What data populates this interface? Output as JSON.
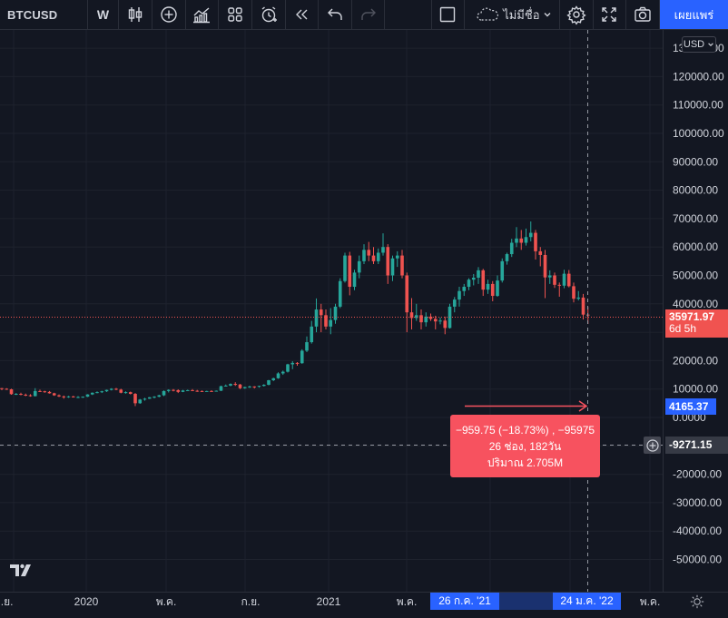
{
  "toolbar": {
    "symbol": "BTCUSD",
    "interval": "W",
    "icons": [
      "candles-icon",
      "add-indicator-icon",
      "indicators-icon",
      "templates-icon",
      "alert-icon",
      "replay-icon",
      "undo-icon",
      "redo-icon",
      "fullscreen-square-icon"
    ],
    "layout_name": "ไม่มีชื่อ",
    "publish_label": "เผยแพร่"
  },
  "currency": "USD",
  "price_axis": {
    "top_partial_label": "130000.00",
    "labels": [
      "120000.00",
      "110000.00",
      "100000.00",
      "90000.00",
      "80000.00",
      "70000.00",
      "60000.00",
      "50000.00",
      "40000.00",
      "20000.00",
      "10000.00",
      "0.0000",
      "-20000.00",
      "-30000.00",
      "-40000.00",
      "-50000.00"
    ]
  },
  "time_axis": {
    "labels": [
      "ก.ย.",
      "2020",
      "พ.ค.",
      "ก.ย.",
      "2021",
      "พ.ค.",
      "พ.ค."
    ]
  },
  "last_price": {
    "value": "35971.97",
    "countdown": "6d 5h"
  },
  "crosshair_price": "4165.37",
  "cursor_price": "-9271.15",
  "measure": {
    "line1": "−959.75 (−18.73%) , −95975",
    "line2": "26 ช่อง, 182วัน",
    "line3": "ปริมาณ 2.705M"
  },
  "time_range": {
    "start": "26 ก.ค. '21",
    "end": "24 ม.ค. '22"
  },
  "colors": {
    "up": "#26a69a",
    "down": "#ef5350",
    "accent": "#2962ff",
    "background": "#131722",
    "measure": "#f7525f"
  },
  "chart_data": {
    "type": "candlestick",
    "title": "",
    "xlabel": "",
    "ylabel": "",
    "ylim": [
      -55000,
      130000
    ],
    "grid": true,
    "ohlc_weekly_first_index_sep_2019": [
      [
        10300,
        10400,
        9600,
        10100
      ],
      [
        10100,
        10300,
        9700,
        9900
      ],
      [
        9900,
        10100,
        8000,
        8200
      ],
      [
        8200,
        8600,
        7900,
        8300
      ],
      [
        8300,
        8700,
        7800,
        8000
      ],
      [
        8000,
        8400,
        7500,
        7800
      ],
      [
        7800,
        8200,
        7300,
        7500
      ],
      [
        7500,
        10300,
        7400,
        9300
      ],
      [
        9300,
        9800,
        9000,
        9200
      ],
      [
        9200,
        9400,
        8700,
        9000
      ],
      [
        9000,
        9300,
        8400,
        8500
      ],
      [
        8500,
        8700,
        7600,
        7800
      ],
      [
        7800,
        8100,
        7200,
        7400
      ],
      [
        7400,
        7700,
        6600,
        7200
      ],
      [
        7200,
        7600,
        6900,
        7400
      ],
      [
        7400,
        7600,
        7000,
        7100
      ],
      [
        7100,
        7500,
        6800,
        7200
      ],
      [
        7200,
        7400,
        6900,
        7300
      ],
      [
        7300,
        8200,
        7200,
        8100
      ],
      [
        8100,
        8800,
        7900,
        8700
      ],
      [
        8700,
        9200,
        8500,
        8900
      ],
      [
        8900,
        9400,
        8600,
        9200
      ],
      [
        9200,
        9800,
        9000,
        9700
      ],
      [
        9700,
        10300,
        9500,
        10100
      ],
      [
        10100,
        10400,
        9600,
        9800
      ],
      [
        9800,
        10100,
        8500,
        8700
      ],
      [
        8700,
        9200,
        8400,
        8900
      ],
      [
        8900,
        9100,
        8100,
        8300
      ],
      [
        8300,
        8600,
        4000,
        5000
      ],
      [
        5000,
        6500,
        4800,
        6300
      ],
      [
        6300,
        6900,
        5900,
        6600
      ],
      [
        6600,
        7200,
        6500,
        7100
      ],
      [
        7100,
        7500,
        6700,
        7300
      ],
      [
        7300,
        8000,
        7100,
        7800
      ],
      [
        7800,
        9500,
        7500,
        9300
      ],
      [
        9300,
        9900,
        8800,
        9700
      ],
      [
        9700,
        10000,
        9200,
        9600
      ],
      [
        9600,
        9900,
        8600,
        9000
      ],
      [
        9000,
        9700,
        8900,
        9500
      ],
      [
        9500,
        9800,
        9300,
        9600
      ],
      [
        9600,
        10000,
        9500,
        9400
      ],
      [
        9400,
        9700,
        9000,
        9300
      ],
      [
        9300,
        9500,
        9000,
        9200
      ],
      [
        9200,
        9400,
        9100,
        9300
      ],
      [
        9300,
        9600,
        9100,
        9200
      ],
      [
        9200,
        9500,
        9100,
        9400
      ],
      [
        9400,
        11200,
        9300,
        11000
      ],
      [
        11000,
        11600,
        10900,
        11200
      ],
      [
        11200,
        12000,
        11000,
        11800
      ],
      [
        11800,
        12400,
        11100,
        11600
      ],
      [
        11600,
        11800,
        10000,
        10300
      ],
      [
        10300,
        10800,
        10100,
        10700
      ],
      [
        10700,
        11200,
        10400,
        10900
      ],
      [
        10900,
        11000,
        10200,
        10800
      ],
      [
        10800,
        11200,
        10500,
        11100
      ],
      [
        11100,
        11700,
        10900,
        11500
      ],
      [
        11500,
        13200,
        11300,
        13100
      ],
      [
        13100,
        14000,
        12800,
        13800
      ],
      [
        13800,
        15900,
        13600,
        15500
      ],
      [
        15500,
        16500,
        15000,
        16100
      ],
      [
        16100,
        18900,
        15800,
        18700
      ],
      [
        18700,
        19800,
        17000,
        19200
      ],
      [
        19200,
        19500,
        18200,
        19100
      ],
      [
        19100,
        24000,
        18900,
        23500
      ],
      [
        23500,
        28500,
        23000,
        26500
      ],
      [
        26500,
        34000,
        26000,
        32000
      ],
      [
        32000,
        41900,
        30000,
        38000
      ],
      [
        38000,
        40000,
        30000,
        36000
      ],
      [
        36000,
        38000,
        31000,
        32000
      ],
      [
        32000,
        38500,
        29300,
        34300
      ],
      [
        34300,
        40000,
        33000,
        39000
      ],
      [
        39000,
        49000,
        38500,
        48000
      ],
      [
        48000,
        58000,
        47500,
        57000
      ],
      [
        57000,
        58300,
        43000,
        46000
      ],
      [
        46000,
        52000,
        44800,
        51000
      ],
      [
        51000,
        57000,
        49000,
        55000
      ],
      [
        55000,
        61000,
        54000,
        59000
      ],
      [
        59000,
        61800,
        55000,
        57000
      ],
      [
        57000,
        60000,
        54000,
        55000
      ],
      [
        55000,
        59500,
        54000,
        58000
      ],
      [
        58000,
        64800,
        57000,
        60000
      ],
      [
        60000,
        61000,
        47000,
        50000
      ],
      [
        50000,
        57000,
        48000,
        56000
      ],
      [
        56000,
        58500,
        53000,
        57000
      ],
      [
        57000,
        59000,
        49000,
        50000
      ],
      [
        50000,
        51000,
        30000,
        37000
      ],
      [
        37000,
        42000,
        31000,
        35000
      ],
      [
        35000,
        40000,
        34000,
        36000
      ],
      [
        36000,
        38000,
        31000,
        33500
      ],
      [
        33500,
        37000,
        32000,
        35500
      ],
      [
        35500,
        36600,
        34000,
        34700
      ],
      [
        34700,
        35800,
        31000,
        33800
      ],
      [
        33800,
        35200,
        32800,
        34100
      ],
      [
        34100,
        35500,
        29300,
        31500
      ],
      [
        31500,
        40000,
        31300,
        39000
      ],
      [
        39000,
        42400,
        37000,
        41500
      ],
      [
        41500,
        46000,
        39000,
        44500
      ],
      [
        44500,
        47000,
        42800,
        46000
      ],
      [
        46000,
        49000,
        44800,
        48500
      ],
      [
        48500,
        50500,
        46500,
        49200
      ],
      [
        49200,
        52900,
        47000,
        51800
      ],
      [
        51800,
        52300,
        42800,
        45000
      ],
      [
        45000,
        48500,
        43500,
        47000
      ],
      [
        47000,
        48000,
        40900,
        42800
      ],
      [
        42800,
        50000,
        42500,
        48200
      ],
      [
        48200,
        56000,
        47500,
        55000
      ],
      [
        55000,
        58000,
        53800,
        57500
      ],
      [
        57500,
        62900,
        56500,
        61500
      ],
      [
        61500,
        67000,
        60000,
        63000
      ],
      [
        63000,
        66000,
        59000,
        61500
      ],
      [
        61500,
        66500,
        60500,
        63500
      ],
      [
        63500,
        69000,
        62000,
        65000
      ],
      [
        65000,
        66000,
        55600,
        58500
      ],
      [
        58500,
        60000,
        53200,
        57200
      ],
      [
        57200,
        59000,
        42000,
        49300
      ],
      [
        49300,
        51800,
        47000,
        50000
      ],
      [
        50000,
        51000,
        45600,
        46700
      ],
      [
        46700,
        47500,
        42500,
        46400
      ],
      [
        46400,
        52000,
        45500,
        50600
      ],
      [
        50600,
        51900,
        45800,
        46200
      ],
      [
        46200,
        47500,
        40500,
        41800
      ],
      [
        41800,
        44500,
        41200,
        42200
      ],
      [
        42200,
        43500,
        34500,
        36200
      ],
      [
        36200,
        38900,
        32900,
        35972
      ]
    ],
    "range_measurement": {
      "start": "26 ก.ค. '21",
      "end": "24 ม.ค. '22",
      "change": "−959.75 (−18.73%)",
      "bars": 26,
      "days": 182,
      "volume": "2.705M"
    }
  }
}
